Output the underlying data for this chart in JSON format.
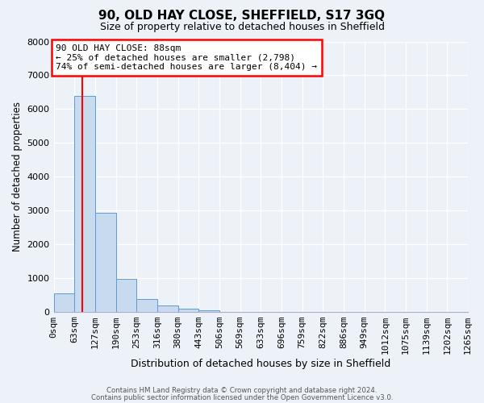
{
  "title": "90, OLD HAY CLOSE, SHEFFIELD, S17 3GQ",
  "subtitle": "Size of property relative to detached houses in Sheffield",
  "xlabel": "Distribution of detached houses by size in Sheffield",
  "ylabel": "Number of detached properties",
  "bar_values": [
    550,
    6380,
    2920,
    975,
    375,
    175,
    90,
    55,
    0,
    0,
    0,
    0,
    0,
    0,
    0,
    0,
    0,
    0,
    0,
    0
  ],
  "bin_labels": [
    "0sqm",
    "63sqm",
    "127sqm",
    "190sqm",
    "253sqm",
    "316sqm",
    "380sqm",
    "443sqm",
    "506sqm",
    "569sqm",
    "633sqm",
    "696sqm",
    "759sqm",
    "822sqm",
    "886sqm",
    "949sqm",
    "1012sqm",
    "1075sqm",
    "1139sqm",
    "1202sqm",
    "1265sqm"
  ],
  "bar_color": "#c8daee",
  "bar_edge_color": "#5b9bd5",
  "red_line_x": 88,
  "bin_width": 63,
  "n_bins": 20,
  "ylim": [
    0,
    8000
  ],
  "yticks": [
    0,
    1000,
    2000,
    3000,
    4000,
    5000,
    6000,
    7000,
    8000
  ],
  "annotation_line1": "90 OLD HAY CLOSE: 88sqm",
  "annotation_line2": "← 25% of detached houses are smaller (2,798)",
  "annotation_line3": "74% of semi-detached houses are larger (8,404) →",
  "annotation_box_color": "white",
  "annotation_box_edge": "red",
  "footer_line1": "Contains HM Land Registry data © Crown copyright and database right 2024.",
  "footer_line2": "Contains public sector information licensed under the Open Government Licence v3.0.",
  "background_color": "#edf2f9",
  "grid_color": "white",
  "spine_color": "#aaaacc"
}
